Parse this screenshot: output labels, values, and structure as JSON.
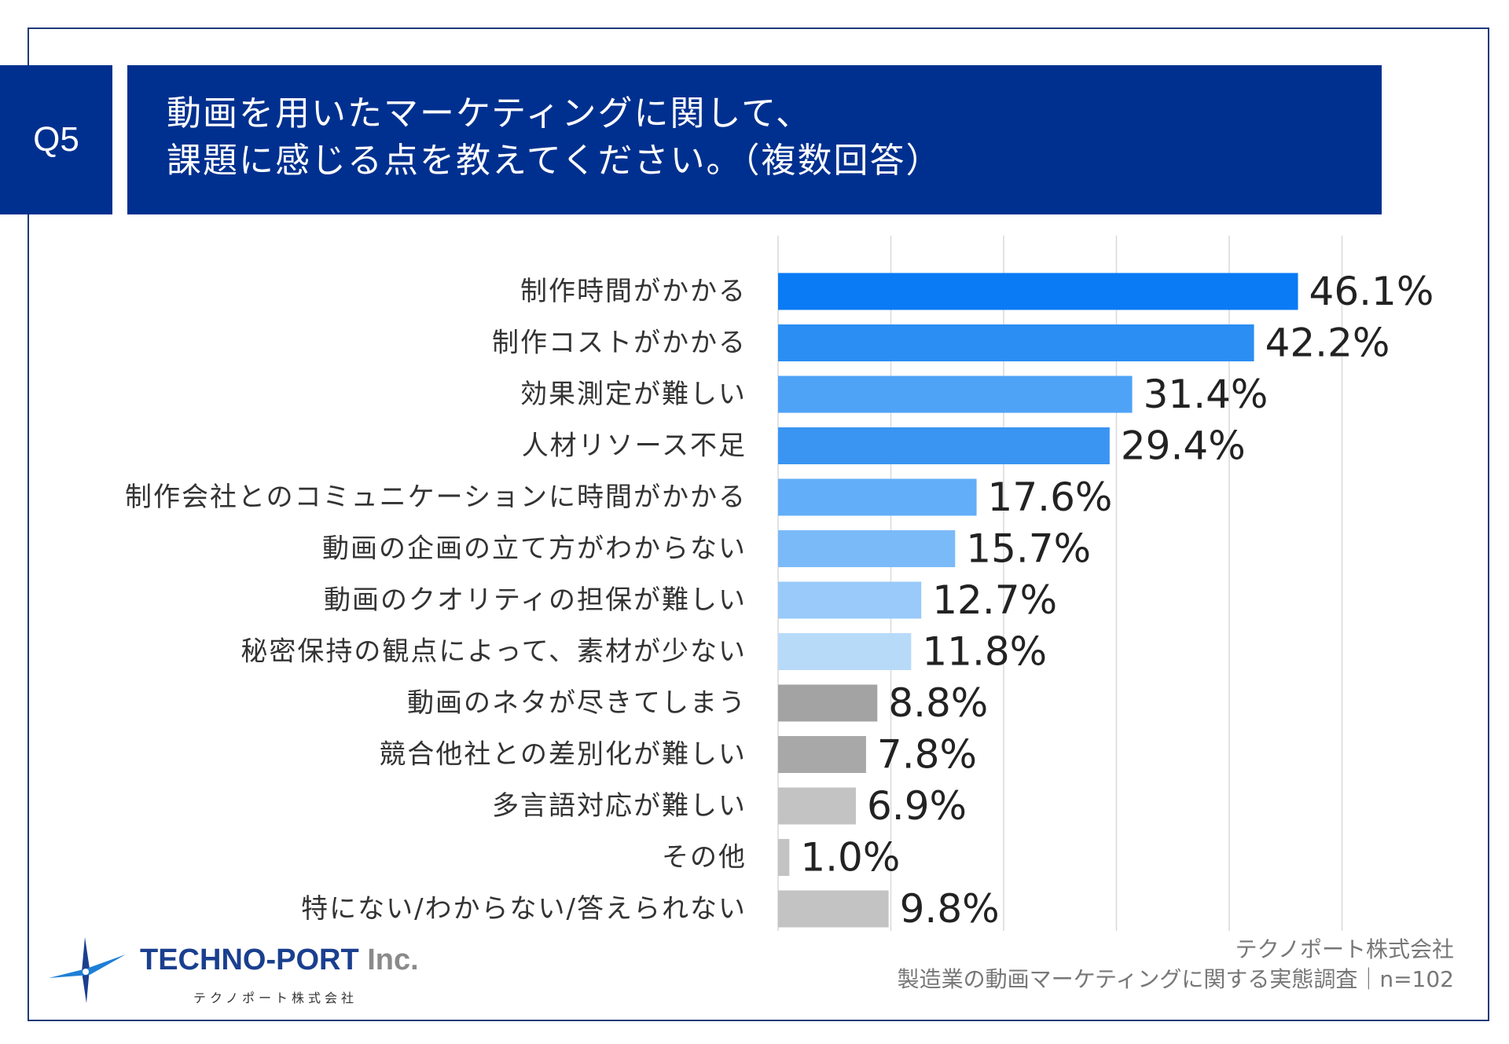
{
  "question": {
    "label": "Q5",
    "title_line1": "動画を用いたマーケティングに関して、",
    "title_line2": "課題に感じる点を教えてください。（複数回答）"
  },
  "chart_data": {
    "type": "bar",
    "orientation": "horizontal",
    "categories": [
      "制作時間がかかる",
      "制作コストがかかる",
      "効果測定が難しい",
      "人材リソース不足",
      "制作会社とのコミュニケーションに時間がかかる",
      "動画の企画の立て方がわからない",
      "動画のクオリティの担保が難しい",
      "秘密保持の観点によって、素材が少ない",
      "動画のネタが尽きてしまう",
      "競合他社との差別化が難しい",
      "多言語対応が難しい",
      "その他",
      "特にない/わからない/答えられない"
    ],
    "values": [
      46.1,
      42.2,
      31.4,
      29.4,
      17.6,
      15.7,
      12.7,
      11.8,
      8.8,
      7.8,
      6.9,
      1.0,
      9.8
    ],
    "value_labels": [
      "46.1%",
      "42.2%",
      "31.4%",
      "29.4%",
      "17.6%",
      "15.7%",
      "12.7%",
      "11.8%",
      "8.8%",
      "7.8%",
      "6.9%",
      "1.0%",
      "9.8%"
    ],
    "bar_colors": [
      "#0a7bf5",
      "#2b8ef3",
      "#4fa3f7",
      "#3a95f2",
      "#63aef8",
      "#7bbaf8",
      "#99cafa",
      "#b7daf9",
      "#a3a3a3",
      "#a8a8a8",
      "#c3c3c3",
      "#c3c3c3",
      "#c3c3c3"
    ],
    "xlim": [
      0,
      50
    ],
    "grid": true,
    "gridline_values": [
      0,
      10,
      20,
      30,
      40,
      50
    ]
  },
  "footer": {
    "company": "テクノポート株式会社",
    "survey": "製造業の動画マーケティングに関する実態調査｜n=102"
  },
  "logo": {
    "name": "TECHNO-PORT",
    "suffix": "Inc.",
    "sub": "テクノポート株式会社"
  },
  "colors": {
    "header_bg": "#00308f",
    "frame": "#1f3a7a",
    "logo_blue": "#1a3f8f"
  }
}
